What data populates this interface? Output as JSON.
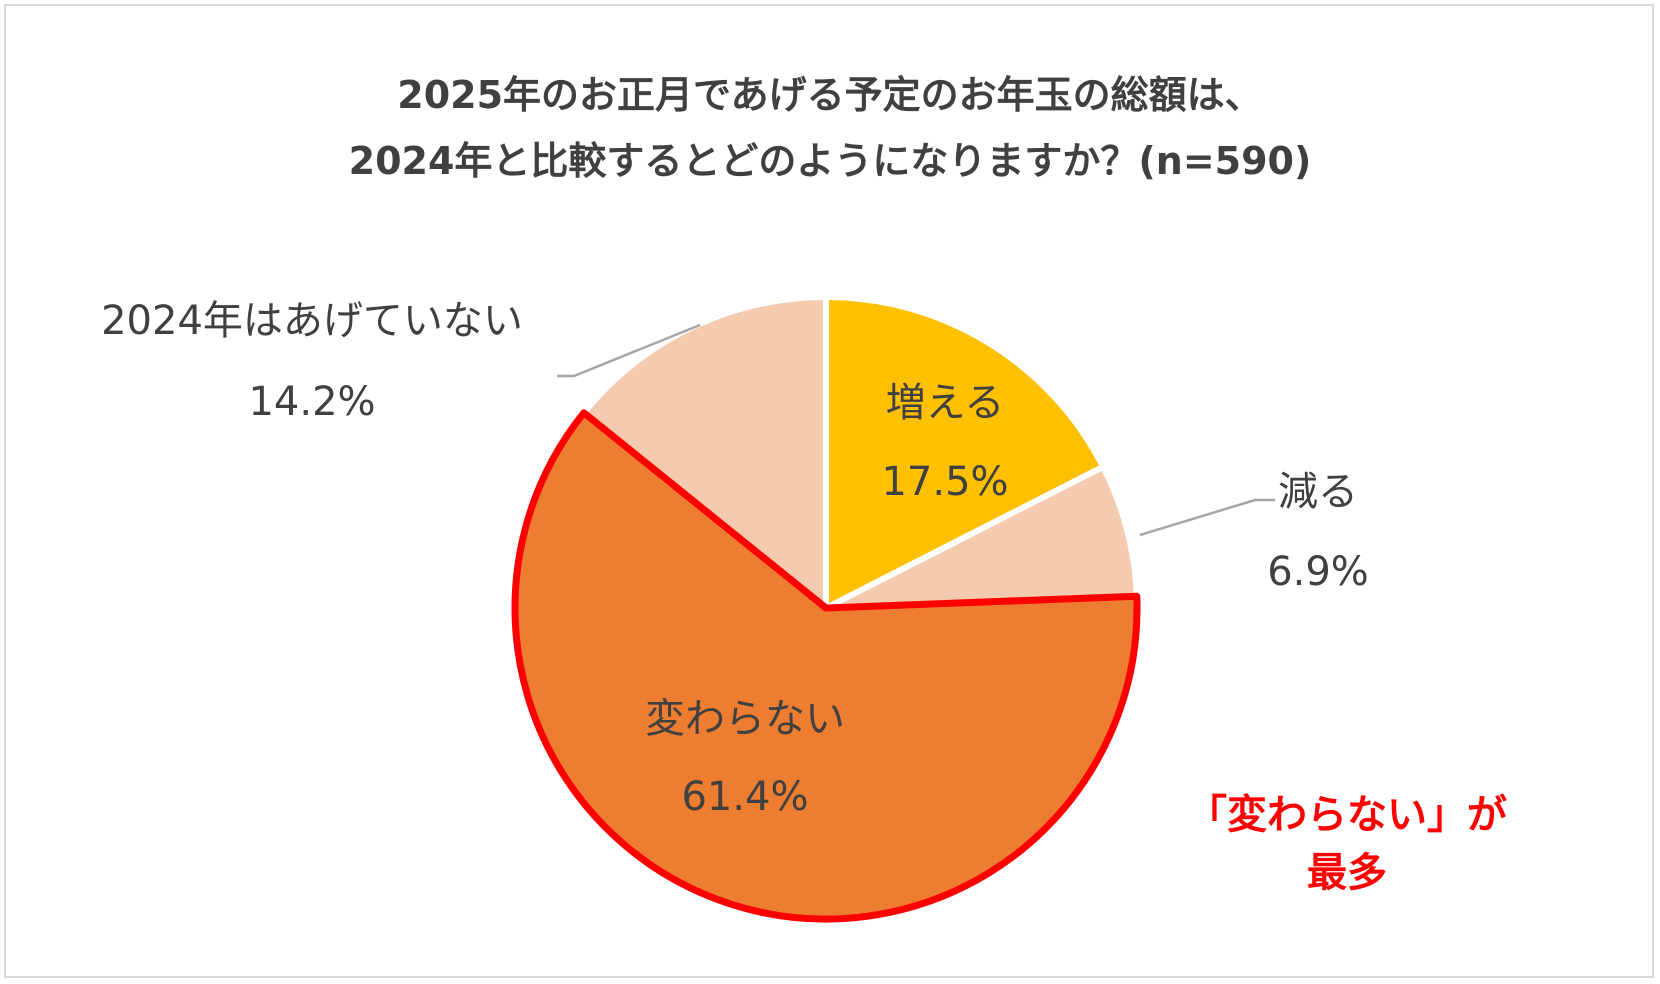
{
  "title": {
    "line1": "2025年のお正月であげる予定のお年玉の総額は、",
    "line2": "2024年と比較するとどのようになりますか？(n=590)"
  },
  "chart_data": {
    "type": "pie",
    "title": "2025年のお正月であげる予定のお年玉の総額は、2024年と比較するとどのようになりますか？(n=590)",
    "start_angle_deg": 0,
    "direction": "clockwise",
    "slices": [
      {
        "label": "増える",
        "value": 17.5,
        "display": "17.5%",
        "color": "#FFC000",
        "highlight": false
      },
      {
        "label": "減る",
        "value": 6.9,
        "display": "6.9%",
        "color": "#F4CBAF",
        "highlight": false
      },
      {
        "label": "変わらない",
        "value": 61.4,
        "display": "61.4%",
        "color": "#ED7D31",
        "highlight": true
      },
      {
        "label": "2024年はあげていない",
        "value": 14.2,
        "display": "14.2%",
        "color": "#F4CBAF",
        "highlight": false
      }
    ]
  },
  "callout": {
    "line1": "「変わらない」が",
    "line2": "最多",
    "color": "#FF0000"
  }
}
